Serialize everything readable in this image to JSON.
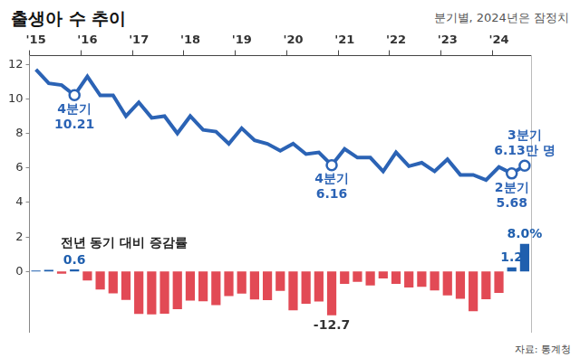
{
  "chart_data": {
    "type": "line",
    "title": "출생아 수 추이",
    "subtitle": "분기별, 2024년은 잠정치",
    "source": "자료: 통계청",
    "categories": [
      "'15",
      null,
      null,
      null,
      "'16",
      null,
      null,
      null,
      "'17",
      null,
      null,
      null,
      "'18",
      null,
      null,
      null,
      "'19",
      null,
      null,
      null,
      "'20",
      null,
      null,
      null,
      "'21",
      null,
      null,
      null,
      "'22",
      null,
      null,
      null,
      "'23",
      null,
      null,
      null,
      "'24",
      null,
      null
    ],
    "ylim": [
      -3.5,
      12.5
    ],
    "yticks": [
      0,
      2,
      4,
      6,
      8,
      10,
      12
    ],
    "y2lim": [
      -17.5,
      62.5
    ],
    "grid": false,
    "legend": "none",
    "series": [
      {
        "type": "line",
        "color": "#2b63b5",
        "values": [
          11.7,
          10.9,
          10.8,
          10.21,
          11.3,
          10.2,
          10.2,
          9.0,
          9.8,
          8.9,
          9.0,
          8.0,
          9.0,
          8.2,
          8.1,
          7.4,
          8.3,
          7.6,
          7.4,
          7.0,
          7.4,
          6.8,
          6.9,
          6.16,
          7.1,
          6.6,
          6.6,
          5.8,
          6.9,
          6.1,
          6.3,
          5.8,
          6.5,
          5.6,
          5.6,
          5.3,
          6.05,
          5.68,
          6.13
        ],
        "value_labels": [
          null,
          null,
          null,
          [
            "4분기",
            "10.21"
          ],
          null,
          null,
          null,
          null,
          null,
          null,
          null,
          null,
          null,
          null,
          null,
          null,
          null,
          null,
          null,
          null,
          null,
          null,
          null,
          [
            "4분기",
            "6.16"
          ],
          null,
          null,
          null,
          null,
          null,
          null,
          null,
          null,
          null,
          null,
          null,
          null,
          null,
          [
            "2분기",
            "5.68"
          ],
          [
            "3분기",
            "6.13만 명"
          ]
        ]
      },
      {
        "type": "bar",
        "name": "전년 동기 대비 증감률",
        "axis": "y2",
        "values": [
          0.3,
          0.5,
          -0.6,
          0.6,
          -2.6,
          -5.2,
          -6.3,
          -8.2,
          -12.3,
          -12.4,
          -12.2,
          -10.9,
          -8.4,
          -8.6,
          -9.7,
          -7.1,
          -6.4,
          -8.1,
          -8.3,
          -5.6,
          -11.2,
          -9.3,
          -8.7,
          -12.7,
          -3.6,
          -3.0,
          -4.0,
          -2.0,
          -3.6,
          -4.6,
          -4.4,
          -5.5,
          -6.9,
          -7.9,
          -11.5,
          -8.0,
          -6.2,
          1.2,
          8.0
        ],
        "value_labels": [
          null,
          null,
          null,
          "0.6",
          null,
          null,
          null,
          null,
          null,
          null,
          null,
          null,
          null,
          null,
          null,
          null,
          null,
          null,
          null,
          null,
          null,
          null,
          null,
          "-12.7",
          null,
          null,
          null,
          null,
          null,
          null,
          null,
          null,
          null,
          null,
          null,
          null,
          null,
          "1.2",
          "8.0%"
        ],
        "colors": [
          "#1f5fae",
          "#1f5fae",
          "#e24a55",
          "#1f5fae",
          "#e24a55",
          "#e24a55",
          "#e24a55",
          "#e24a55",
          "#e24a55",
          "#e24a55",
          "#e24a55",
          "#e24a55",
          "#e24a55",
          "#e24a55",
          "#e24a55",
          "#e24a55",
          "#e24a55",
          "#e24a55",
          "#e24a55",
          "#e24a55",
          "#e24a55",
          "#e24a55",
          "#e24a55",
          "#e24a55",
          "#e24a55",
          "#e24a55",
          "#e24a55",
          "#e24a55",
          "#e24a55",
          "#e24a55",
          "#e24a55",
          "#e24a55",
          "#e24a55",
          "#e24a55",
          "#e24a55",
          "#e24a55",
          "#e24a55",
          "#1f5fae",
          "#1f5fae"
        ]
      }
    ]
  }
}
